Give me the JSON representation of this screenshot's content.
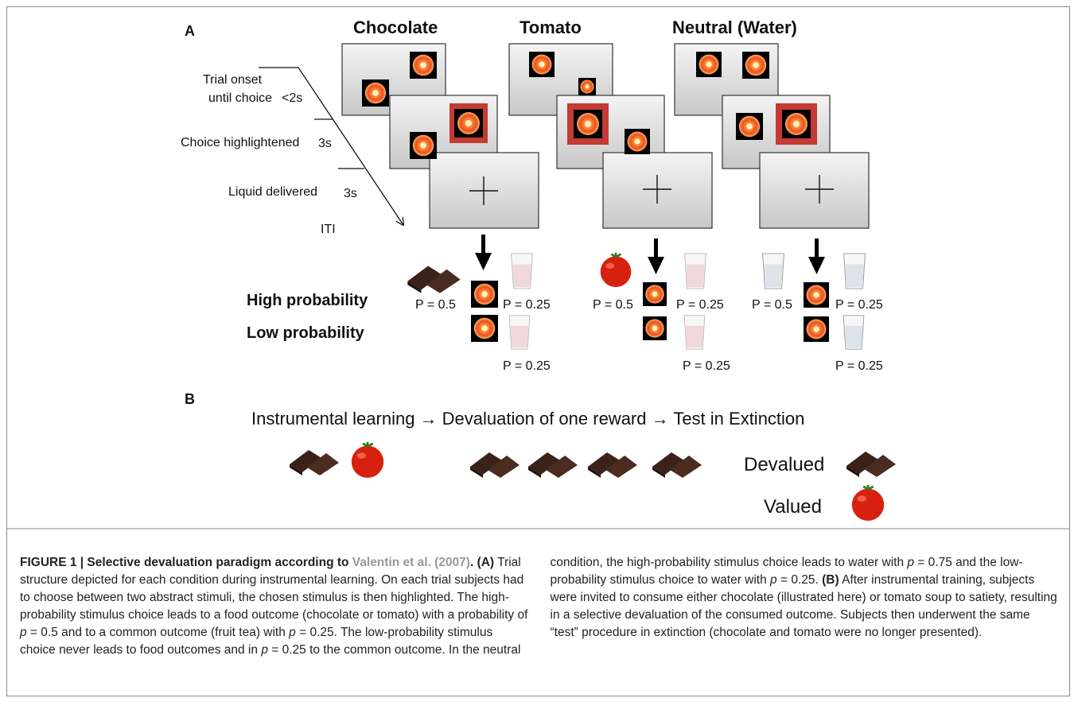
{
  "panel_a": {
    "label": "A",
    "conditions": [
      {
        "name": "Chocolate",
        "high_food_p": "P = 0.5",
        "high_tea_p": "P = 0.25",
        "low_p": "P = 0.25"
      },
      {
        "name": "Tomato",
        "high_food_p": "P = 0.5",
        "high_tea_p": "P = 0.25",
        "low_p": "P = 0.25"
      },
      {
        "name": "Neutral (Water)",
        "high_food_p": "P = 0.5",
        "high_tea_p": "P = 0.25",
        "low_p": "P = 0.25"
      }
    ],
    "timing": {
      "trial_onset": [
        "Trial onset",
        "until choice"
      ],
      "onset_duration": "<2s",
      "highlight": "Choice highlightened",
      "highlight_duration": "3s",
      "liquid": "Liquid delivered",
      "liquid_duration": "3s",
      "iti": "ITI"
    },
    "rows": [
      "High probability",
      "Low probability"
    ]
  },
  "panel_b": {
    "label": "B",
    "flow": "Instrumental learning → Devaluation of one reward → Test in Extinction",
    "devalued": "Devalued",
    "valued": "Valued"
  },
  "caption": [
    {
      "text": "FIGURE 1 | Selective devaluation paradigm according to ",
      "style": "bold"
    },
    {
      "text": "Valentin et al. (2007)",
      "style": "link"
    },
    {
      "text": ". (A)",
      "style": "bold"
    },
    {
      "text": " Trial structure depicted for each condition during instrumental learning. On each trial subjects had to choose between two abstract stimuli, the chosen stimulus is then highlighted. The high-probability stimulus choice leads to a food outcome (chocolate or tomato) with a probability of ",
      "style": "normal"
    },
    {
      "text": "p",
      "style": "italic"
    },
    {
      "text": " = 0.5 and to a common outcome (fruit tea) with ",
      "style": "normal"
    },
    {
      "text": "p",
      "style": "italic"
    },
    {
      "text": " = 0.25. The low-probability stimulus choice never leads to food outcomes and in ",
      "style": "normal"
    },
    {
      "text": "p",
      "style": "italic"
    },
    {
      "text": " = 0.25 to the common outcome. In the neutral condition, the high-probability stimulus choice leads to water with ",
      "style": "normal"
    },
    {
      "text": "p",
      "style": "italic"
    },
    {
      "text": " = 0.75 and the low-probability stimulus choice to water with ",
      "style": "normal"
    },
    {
      "text": "p",
      "style": "italic"
    },
    {
      "text": " = 0.25. ",
      "style": "normal"
    },
    {
      "text": "(B)",
      "style": "bold"
    },
    {
      "text": " After instrumental training, subjects were invited to consume either chocolate (illustrated here) or tomato soup to satiety, resulting in a selective devaluation of the consumed outcome. Subjects then underwent the same “test” procedure in extinction (chocolate and tomato were no longer presented).",
      "style": "normal"
    }
  ]
}
